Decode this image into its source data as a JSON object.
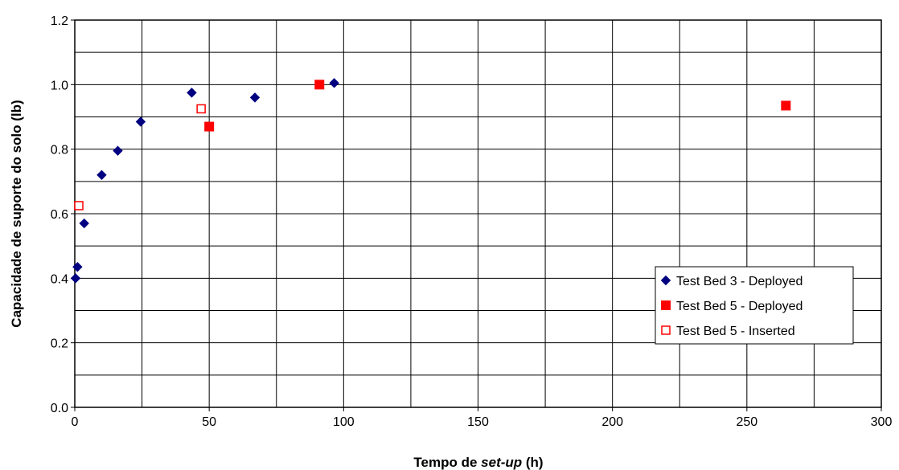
{
  "chart_data": {
    "type": "scatter",
    "xlabel_parts": [
      {
        "text": "Tempo de ",
        "italic": false
      },
      {
        "text": "set-up",
        "italic": true
      },
      {
        "text": " (h)",
        "italic": false
      }
    ],
    "ylabel": "Capacidade de suporte do solo (lb)",
    "xlim": [
      0,
      300
    ],
    "ylim": [
      0,
      1.2
    ],
    "x_ticks": [
      0,
      50,
      100,
      150,
      200,
      250,
      300
    ],
    "x_tick_labels": [
      "0",
      "50",
      "100",
      "150",
      "200",
      "250",
      "300"
    ],
    "y_ticks": [
      0,
      0.2,
      0.4,
      0.6,
      0.8,
      1.0,
      1.2
    ],
    "y_tick_labels": [
      "0.0",
      "0.2",
      "0.4",
      "0.6",
      "0.8",
      "1.0",
      "1.2"
    ],
    "x_grid_step": 25,
    "y_grid_step": 0.1,
    "grid": true,
    "legend_position": "right",
    "series": [
      {
        "name": "Test Bed 3 - Deployed",
        "marker": "diamond",
        "color": "#000080",
        "filled": true,
        "points": [
          [
            0.3,
            0.4
          ],
          [
            1.0,
            0.435
          ],
          [
            3.5,
            0.57
          ],
          [
            10,
            0.72
          ],
          [
            16,
            0.795
          ],
          [
            24.5,
            0.885
          ],
          [
            43.5,
            0.975
          ],
          [
            67,
            0.96
          ],
          [
            96.5,
            1.005
          ]
        ]
      },
      {
        "name": "Test Bed 5 - Deployed",
        "marker": "square",
        "color": "#ff0000",
        "filled": true,
        "points": [
          [
            50,
            0.87
          ],
          [
            91,
            1.0
          ],
          [
            264.5,
            0.935
          ]
        ]
      },
      {
        "name": "Test Bed 5 - Inserted",
        "marker": "square",
        "color": "#ff0000",
        "filled": false,
        "points": [
          [
            1.5,
            0.625
          ],
          [
            47,
            0.925
          ]
        ]
      }
    ]
  }
}
